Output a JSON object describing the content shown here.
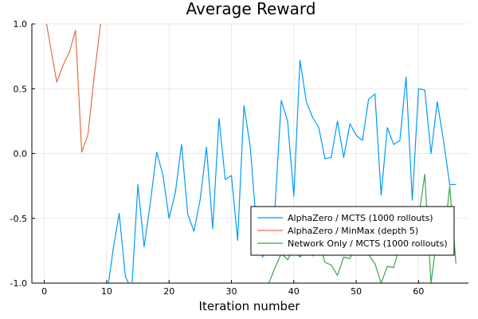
{
  "chart_data": {
    "type": "line",
    "title": "Average Reward",
    "xlabel": "Iteration number",
    "ylabel": "",
    "xlim": [
      -2,
      68
    ],
    "ylim": [
      -1.0,
      1.0
    ],
    "xticks": [
      0,
      10,
      20,
      30,
      40,
      50,
      60
    ],
    "yticks": [
      -1.0,
      -0.5,
      0.0,
      0.5,
      1.0
    ],
    "ytick_labels": [
      "-1.0",
      "-0.5",
      "0.0",
      "0.5",
      "1.0"
    ],
    "grid": true,
    "legend_position": "bottom-right",
    "series": [
      {
        "name": "AlphaZero / MCTS (1000 rollouts)",
        "color": "#009AFA",
        "x": [
          0,
          1,
          2,
          3,
          4,
          5,
          6,
          7,
          8,
          9,
          10,
          11,
          12,
          13,
          14,
          15,
          16,
          17,
          18,
          19,
          20,
          21,
          22,
          23,
          24,
          25,
          26,
          27,
          28,
          29,
          30,
          31,
          32,
          33,
          34,
          35,
          36,
          37,
          38,
          39,
          40,
          41,
          42,
          43,
          44,
          45,
          46,
          47,
          48,
          49,
          50,
          51,
          52,
          53,
          54,
          55,
          56,
          57,
          58,
          59,
          60,
          61,
          62,
          63,
          64,
          65,
          66
        ],
        "values": [
          -1.2,
          -1.2,
          -1.2,
          -1.2,
          -1.2,
          -1.2,
          -1.2,
          -1.2,
          -1.2,
          -1.2,
          -1.1,
          -0.75,
          -0.46,
          -0.95,
          -1.05,
          -0.24,
          -0.72,
          -0.38,
          0.01,
          -0.16,
          -0.5,
          -0.3,
          0.07,
          -0.47,
          -0.6,
          -0.35,
          0.05,
          -0.58,
          0.27,
          -0.2,
          -0.17,
          -0.67,
          0.37,
          0.06,
          -0.55,
          -0.8,
          -0.55,
          -0.4,
          0.41,
          0.25,
          -0.33,
          0.72,
          0.4,
          0.28,
          0.2,
          -0.04,
          -0.03,
          0.25,
          -0.03,
          0.23,
          0.14,
          0.1,
          0.42,
          0.46,
          -0.32,
          0.2,
          0.07,
          0.1,
          0.59,
          -0.36,
          0.5,
          0.49,
          0.0,
          0.4,
          0.1,
          -0.24,
          -0.24
        ]
      },
      {
        "name": "AlphaZero / MinMax (depth 5)",
        "color": "#E26F46",
        "x": [
          0,
          1,
          2,
          3,
          4,
          5,
          6,
          7,
          8,
          9,
          10
        ],
        "values": [
          1.1,
          0.82,
          0.55,
          0.68,
          0.78,
          0.95,
          0.01,
          0.15,
          0.6,
          0.99,
          1.3
        ]
      },
      {
        "name": "Network Only / MCTS (1000 rollouts)",
        "color": "#3DA44D",
        "x": [
          36,
          37,
          38,
          39,
          40,
          41,
          42,
          43,
          44,
          45,
          46,
          47,
          48,
          49,
          50,
          51,
          52,
          53,
          54,
          55,
          56,
          57,
          58,
          59,
          60,
          61,
          62,
          63,
          64,
          65,
          66
        ],
        "values": [
          -1.0,
          -0.88,
          -0.77,
          -0.82,
          -0.73,
          -0.8,
          -0.75,
          -0.79,
          -0.68,
          -0.84,
          -0.86,
          -0.94,
          -0.8,
          -0.81,
          -0.71,
          -0.76,
          -0.78,
          -0.85,
          -1.0,
          -0.87,
          -0.88,
          -0.71,
          -0.63,
          -0.6,
          -0.5,
          -0.16,
          -1.0,
          -0.63,
          -0.71,
          -0.25,
          -0.85
        ]
      }
    ]
  }
}
